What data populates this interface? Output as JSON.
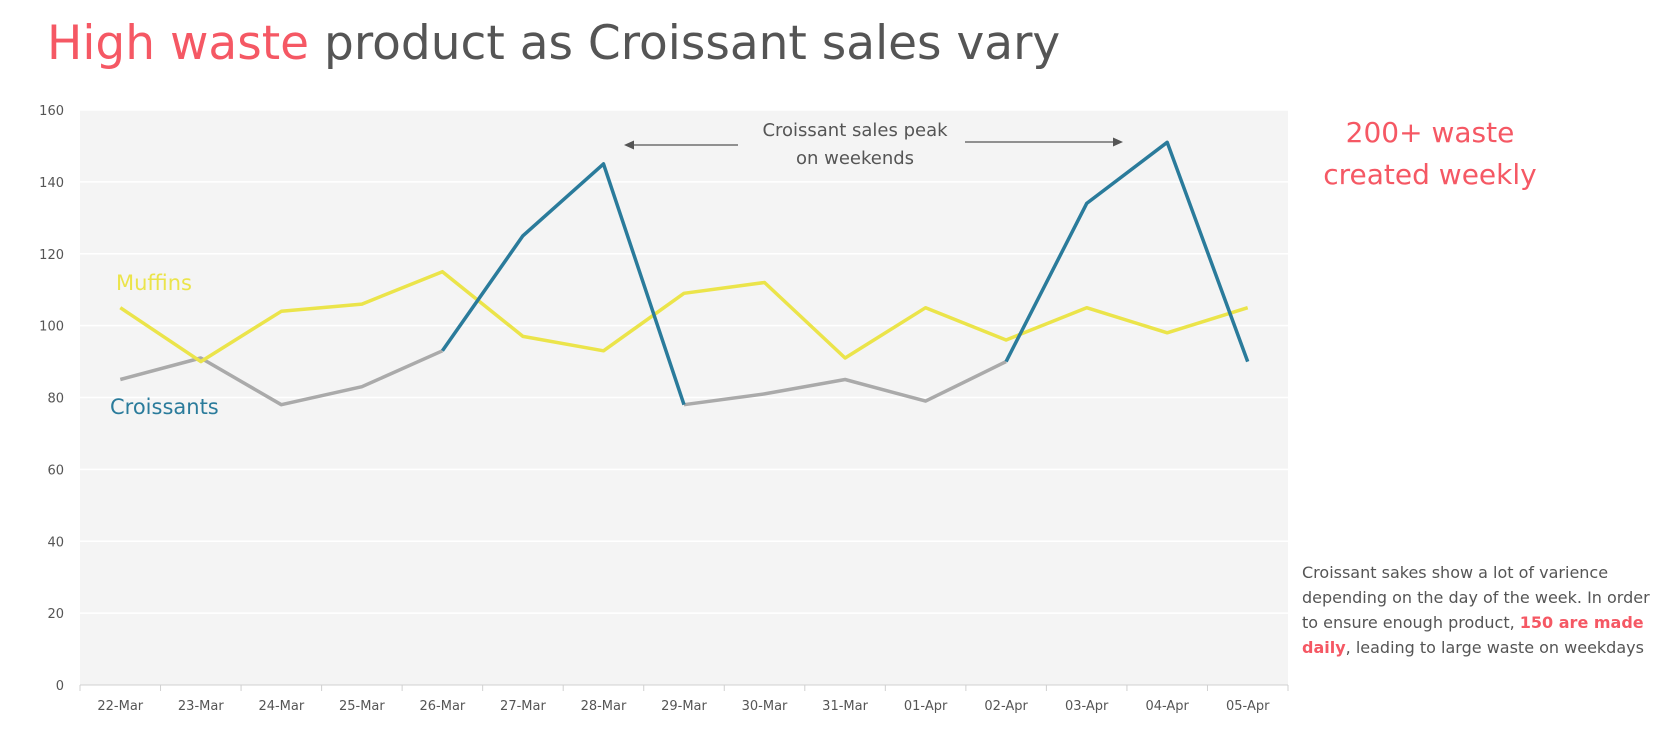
{
  "title": {
    "highlight": "High waste",
    "rest": " product as Croissant sales vary"
  },
  "callout": {
    "line1": "200+ waste",
    "line2": "created weekly"
  },
  "note": {
    "part1": "Croissant sakes show a lot of varience depending on the day of the week. In order to ensure enough product, ",
    "emphasis": "150 are made daily",
    "part2": ", leading to large waste on weekdays"
  },
  "colors": {
    "accent": "#f55864",
    "croissants_weekend": "#2a7b9b",
    "croissants_weekday": "#aaaaaa",
    "muffins": "#ebe44a",
    "plot_background": "#f4f4f4",
    "text": "#555555"
  },
  "chart_data": {
    "type": "line",
    "categories": [
      "22-Mar",
      "23-Mar",
      "24-Mar",
      "25-Mar",
      "26-Mar",
      "27-Mar",
      "28-Mar",
      "29-Mar",
      "30-Mar",
      "31-Mar",
      "01-Apr",
      "02-Apr",
      "03-Apr",
      "04-Apr",
      "05-Apr"
    ],
    "series": [
      {
        "name": "Croissants",
        "values": [
          85,
          91,
          78,
          83,
          93,
          125,
          145,
          78,
          81,
          85,
          79,
          90,
          134,
          151,
          90
        ]
      },
      {
        "name": "Muffins",
        "values": [
          105,
          90,
          104,
          106,
          115,
          97,
          93,
          109,
          112,
          91,
          105,
          96,
          105,
          98,
          105
        ]
      }
    ],
    "weekend_segments": [
      [
        4,
        7
      ],
      [
        11,
        14
      ]
    ],
    "ylim": [
      0,
      160
    ],
    "yticks": [
      0,
      20,
      40,
      60,
      80,
      100,
      120,
      140,
      160
    ],
    "grid": true,
    "annotation": {
      "line1": "Croissant sales peak",
      "line2": "on weekends"
    }
  }
}
